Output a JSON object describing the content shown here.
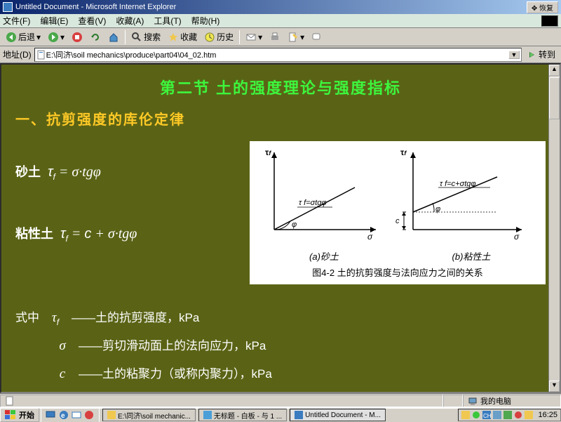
{
  "window": {
    "title": "Untitled Document - Microsoft Internet Explorer",
    "restore": "恢复"
  },
  "menu": {
    "file": "文件(F)",
    "edit": "编辑(E)",
    "view": "查看(V)",
    "favorites": "收藏(A)",
    "tools": "工具(T)",
    "help": "帮助(H)"
  },
  "toolbar": {
    "back": "后退",
    "search": "搜索",
    "favorites": "收藏",
    "history": "历史"
  },
  "address": {
    "label": "地址(D)",
    "path": "E:\\同济\\soil mechanics\\produce\\part04\\04_02.htm",
    "go": "转到"
  },
  "content": {
    "section_title": "第二节  土的强度理论与强度指标",
    "subhead": "一、抗剪强度的库伦定律",
    "sand_label": "砂土",
    "sand_formula_html": "τ<sub>f</sub> = σ·tgφ",
    "clay_label": "粘性土",
    "clay_formula_html": "τ<sub>f</sub> = c + σ·tgφ",
    "figure": {
      "a_label": "(a)砂土",
      "a_line": "τ f=σtgφ",
      "b_label": "(b)粘性土",
      "b_line": "τ f=c+σtgφ",
      "caption": "图4-2  土的抗剪强度与法向应力之间的关系",
      "y_axis": "τf",
      "x_axis": "σ",
      "angle": "φ",
      "c_label": "c"
    },
    "defs": {
      "intro_prefix": "式中",
      "tau_sym": "τ",
      "tau_desc": "——土的抗剪强度，kPa",
      "sigma_sym": "σ",
      "sigma_desc": "——剪切滑动面上的法向应力，kPa",
      "c_sym": "c",
      "c_desc": "——土的粘聚力（或称内聚力），kPa"
    }
  },
  "status": {
    "zone": "我的电脑"
  },
  "taskbar": {
    "start": "开始",
    "items": [
      {
        "icon": "#f0c850",
        "text": "E:\\同济\\soil mechanic..."
      },
      {
        "icon": "#4a9fd8",
        "text": "无标题 - 白板 - 与 1 ..."
      },
      {
        "icon": "#3a7cbf",
        "text": "Untitled Document - M..."
      }
    ],
    "clock": "16:25"
  },
  "colors": {
    "content_bg": "#5a6315",
    "title_fg": "#3df53d",
    "subhead_fg": "#ffc926"
  }
}
